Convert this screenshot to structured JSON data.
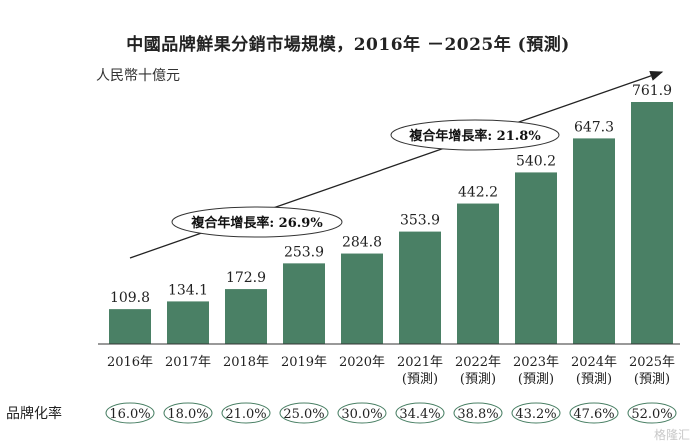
{
  "chart_data": {
    "type": "bar",
    "title": "中國品牌鮮果分銷市場規模，2016年 －2025年 (預測)",
    "ylabel": "人民幣十億元",
    "categories": [
      [
        "2016年"
      ],
      [
        "2017年"
      ],
      [
        "2018年"
      ],
      [
        "2019年"
      ],
      [
        "2020年"
      ],
      [
        "2021年",
        "(預測)"
      ],
      [
        "2022年",
        "(預測)"
      ],
      [
        "2023年",
        "(預測)"
      ],
      [
        "2024年",
        "(預測)"
      ],
      [
        "2025年",
        "(預測)"
      ]
    ],
    "values": [
      109.8,
      134.1,
      172.9,
      253.9,
      284.8,
      353.9,
      442.2,
      540.2,
      647.3,
      761.9
    ],
    "value_labels": [
      "109.8",
      "134.1",
      "172.9",
      "253.9",
      "284.8",
      "353.9",
      "442.2",
      "540.2",
      "647.3",
      "761.9"
    ],
    "ylim": [
      0,
      800
    ],
    "bar_color": "#4a8065",
    "grid": false,
    "annotations": [
      {
        "text": "複合年增長率: 26.9%",
        "from": 0,
        "to": 4
      },
      {
        "text": "複合年增長率: 21.8%",
        "from": 5,
        "to": 9
      }
    ],
    "brand_rate": {
      "label": "品牌化率",
      "values": [
        "16.0%",
        "18.0%",
        "21.0%",
        "25.0%",
        "30.0%",
        "34.4%",
        "38.8%",
        "43.2%",
        "47.6%",
        "52.0%"
      ]
    }
  },
  "watermark": "格隆汇"
}
